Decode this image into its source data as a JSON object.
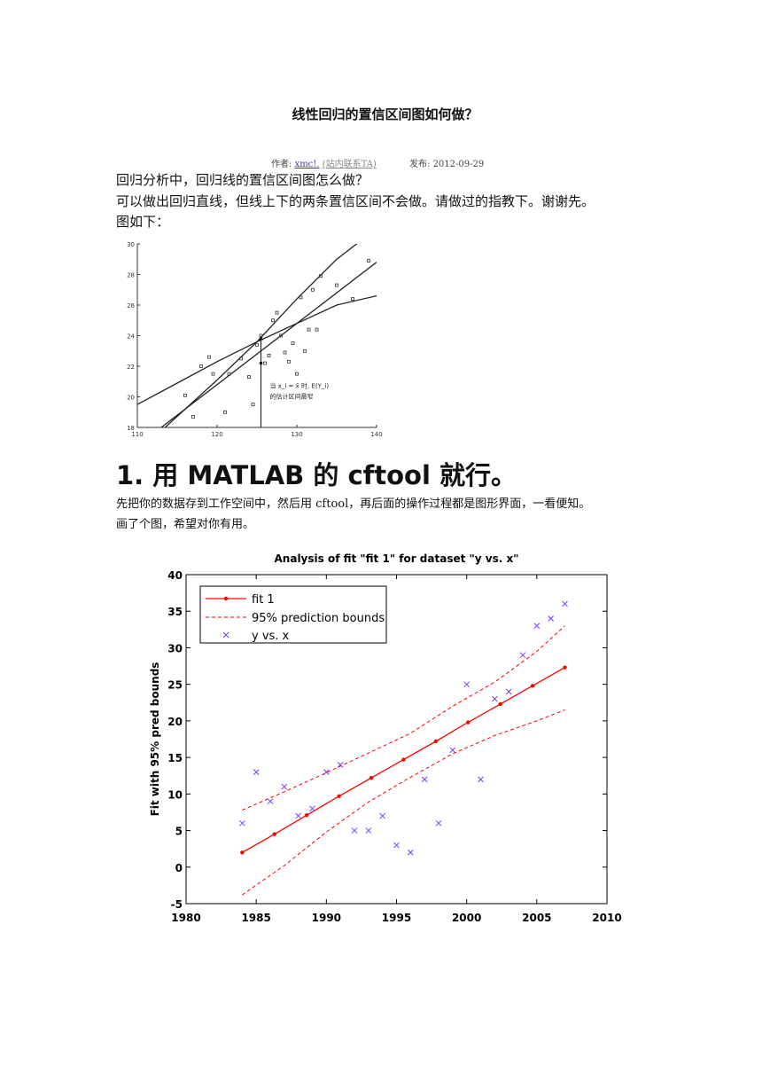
{
  "post": {
    "title": "线性回归的置信区间图如何做？",
    "author_label": "作者:",
    "author_name": "xmc!.",
    "author_contact": "(站内联系TA)",
    "published": "发布: 2012-09-29"
  },
  "question": {
    "line1": "回归分析中，回归线的置信区间图怎么做？",
    "line2": "可以做出回归直线，但线上下的两条置信区间不会做。请做过的指教下。谢谢先。",
    "line3": "图如下："
  },
  "answer": {
    "heading": "1. 用 MATLAB 的 cftool 就行。",
    "line1": "先把你的数据存到工作空间中，然后用 cftool，再后面的操作过程都是图形界面，一看便知。",
    "line2": "画了个图，希望对你有用。"
  },
  "chart_data": [
    {
      "type": "scatter",
      "title": "",
      "xlim": [
        110,
        140
      ],
      "ylim": [
        18,
        30
      ],
      "x_ticks": [
        "110",
        "120",
        "130",
        "140"
      ],
      "y_ticks": [
        "18",
        "20",
        "22",
        "24",
        "26",
        "28",
        "30"
      ],
      "annotation_line1": "当 x_i = x̄ 时, E(Y_i)",
      "annotation_line2": "的估计区间最窄",
      "points": [
        [
          116,
          20.1
        ],
        [
          117,
          18.7
        ],
        [
          118,
          22.0
        ],
        [
          119,
          22.6
        ],
        [
          119.5,
          21.5
        ],
        [
          121,
          19.0
        ],
        [
          121.5,
          21.5
        ],
        [
          123,
          22.5
        ],
        [
          124,
          21.3
        ],
        [
          124.5,
          19.5
        ],
        [
          125,
          23.4
        ],
        [
          125.5,
          24.0
        ],
        [
          126,
          22.2
        ],
        [
          126.5,
          22.7
        ],
        [
          127,
          25.0
        ],
        [
          127.5,
          25.5
        ],
        [
          128,
          24.0
        ],
        [
          128.5,
          22.9
        ],
        [
          129,
          22.3
        ],
        [
          129.5,
          23.5
        ],
        [
          130,
          21.5
        ],
        [
          130.5,
          26.5
        ],
        [
          131,
          23.0
        ],
        [
          131.5,
          24.4
        ],
        [
          132,
          27.0
        ],
        [
          132.5,
          24.4
        ],
        [
          133,
          27.9
        ],
        [
          135,
          27.3
        ],
        [
          137,
          26.4
        ],
        [
          139,
          28.9
        ]
      ],
      "fit_line": [
        [
          110,
          16.8
        ],
        [
          140,
          28.8
        ]
      ],
      "upper_band": [
        [
          112,
          17.3
        ],
        [
          120,
          21.1
        ],
        [
          125,
          23.6
        ],
        [
          130,
          26.4
        ],
        [
          135,
          29.0
        ],
        [
          138,
          30.2
        ]
      ],
      "lower_band": [
        [
          110,
          19.5
        ],
        [
          115,
          20.9
        ],
        [
          120,
          22.3
        ],
        [
          125,
          23.6
        ],
        [
          130,
          24.8
        ],
        [
          135,
          26.0
        ],
        [
          140,
          26.6
        ]
      ],
      "arrow_x": 125.5,
      "arrow_range": [
        22.2,
        24.0
      ]
    },
    {
      "type": "line",
      "title": "Analysis of fit \"fit 1\" for dataset \"y vs. x\"",
      "xlabel": "",
      "ylabel": "Fit with 95% pred bounds",
      "xlim": [
        1980,
        2010
      ],
      "ylim": [
        -5,
        40
      ],
      "x_ticks": [
        "1980",
        "1985",
        "1990",
        "1995",
        "2000",
        "2005",
        "2010"
      ],
      "y_ticks": [
        "-5",
        "0",
        "5",
        "10",
        "15",
        "20",
        "25",
        "30",
        "35",
        "40"
      ],
      "legend": {
        "placement": "top-left",
        "entries": [
          "fit 1",
          "95% prediction bounds",
          "y vs. x"
        ]
      },
      "colors": {
        "fit": "#ff0000",
        "points": "#7a3cff"
      },
      "fit": {
        "name": "fit 1",
        "x": [
          1984,
          1986.3,
          1988.6,
          1990.9,
          1993.2,
          1995.5,
          1997.8,
          2000.1,
          2002.4,
          2004.7,
          2007
        ],
        "y": [
          2.0,
          4.5,
          7.1,
          9.7,
          12.2,
          14.7,
          17.2,
          19.8,
          22.3,
          24.8,
          27.3
        ]
      },
      "upper_bound": {
        "name": "95% prediction bounds",
        "x": [
          1984,
          1987,
          1990,
          1993,
          1996,
          1999,
          2002,
          2005,
          2007
        ],
        "y": [
          7.8,
          10.3,
          12.9,
          15.6,
          18.3,
          22.0,
          25.3,
          29.5,
          33.0
        ]
      },
      "lower_bound": {
        "x": [
          1984,
          1987,
          1990,
          1993,
          1996,
          1999,
          2002,
          2005,
          2007
        ],
        "y": [
          -3.8,
          0.2,
          4.8,
          8.9,
          12.3,
          15.5,
          18.0,
          20.0,
          21.5
        ]
      },
      "scatter": {
        "name": "y vs. x",
        "x": [
          1984,
          1985,
          1986,
          1987,
          1988,
          1989,
          1990,
          1991,
          1992,
          1993,
          1994,
          1995,
          1996,
          1997,
          1998,
          1999,
          2000,
          2001,
          2002,
          2003,
          2004,
          2005,
          2006,
          2007
        ],
        "y": [
          6,
          13,
          9,
          11,
          7,
          8,
          13,
          14,
          5,
          5,
          7,
          3,
          2,
          12,
          6,
          16,
          25,
          12,
          23,
          24,
          29,
          33,
          34,
          36
        ]
      }
    }
  ]
}
